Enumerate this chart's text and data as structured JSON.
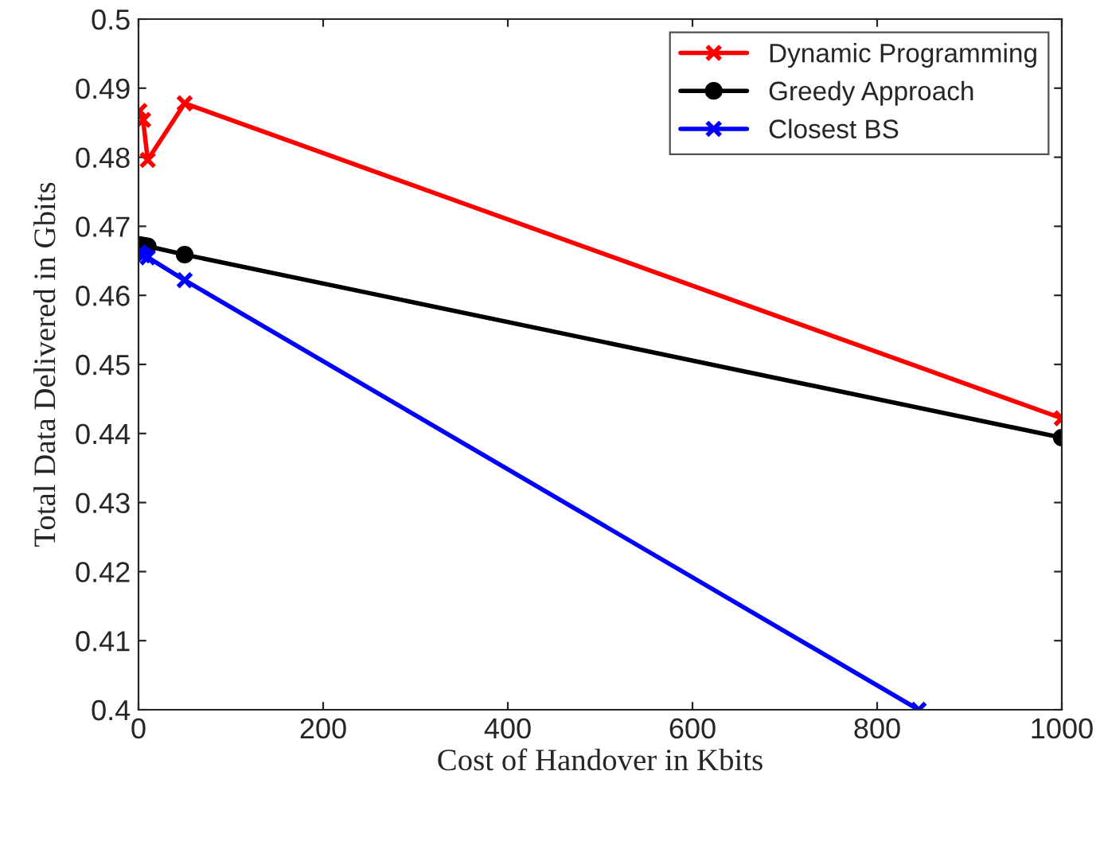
{
  "chart_data": {
    "type": "line",
    "xlabel": "Cost of Handover in Kbits",
    "ylabel": "Total Data Delivered in Gbits",
    "x": [
      1,
      5,
      10,
      50,
      1000
    ],
    "series": [
      {
        "name": "Dynamic Programming",
        "color": "#ff0000",
        "marker": "cross",
        "values": [
          0.4867,
          0.4854,
          0.4796,
          0.4878,
          0.4422
        ]
      },
      {
        "name": "Greedy Approach",
        "color": "#000000",
        "marker": "circle",
        "values": [
          0.4673,
          0.4672,
          0.4671,
          0.4659,
          0.4394
        ]
      },
      {
        "name": "Closest BS",
        "color": "#0000ff",
        "marker": "cross",
        "x": [
          1,
          5,
          10,
          50,
          845
        ],
        "values": [
          0.4662,
          0.4658,
          0.4655,
          0.4622,
          0.4
        ]
      }
    ],
    "xlim": [
      0,
      1000
    ],
    "xticks": [
      0,
      200,
      400,
      600,
      800,
      1000
    ],
    "ylim": [
      0.4,
      0.5
    ],
    "yticks": [
      0.4,
      0.41,
      0.42,
      0.43,
      0.44,
      0.45,
      0.46,
      0.47,
      0.48,
      0.49,
      0.5
    ],
    "grid": false,
    "legend": "top right",
    "line_style": "solid"
  }
}
